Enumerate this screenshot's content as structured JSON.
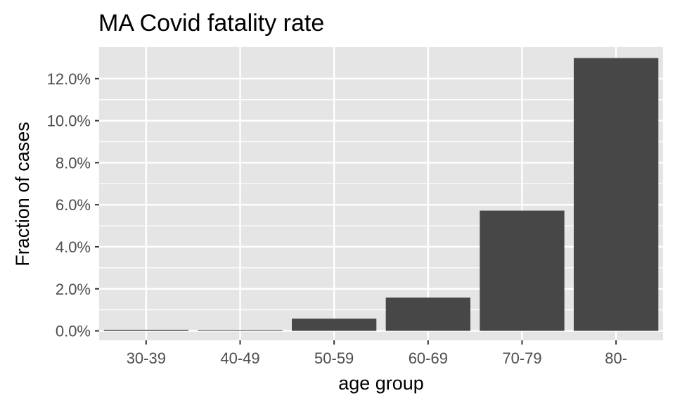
{
  "chart_data": {
    "type": "bar",
    "title": "MA Covid fatality rate",
    "xlabel": "age group",
    "ylabel": "Fraction of cases",
    "categories": [
      "30-39",
      "40-49",
      "50-59",
      "60-69",
      "70-79",
      "80-"
    ],
    "values": [
      0.0005,
      0.0003,
      0.0058,
      0.0158,
      0.0572,
      0.1298
    ],
    "ylim": [
      -0.0045,
      0.135
    ],
    "yticks": [
      0,
      0.02,
      0.04,
      0.06,
      0.08,
      0.1,
      0.12
    ],
    "ytick_labels": [
      "0.0%",
      "2.0%",
      "4.0%",
      "6.0%",
      "8.0%",
      "10.0%",
      "12.0%"
    ],
    "grid": true,
    "legend": "none",
    "colors": {
      "panel_background": "#e5e5e5",
      "grid": "#ffffff",
      "bar": "#474747",
      "tick_text": "#4d4d4d",
      "tick_mark": "#333333"
    }
  }
}
